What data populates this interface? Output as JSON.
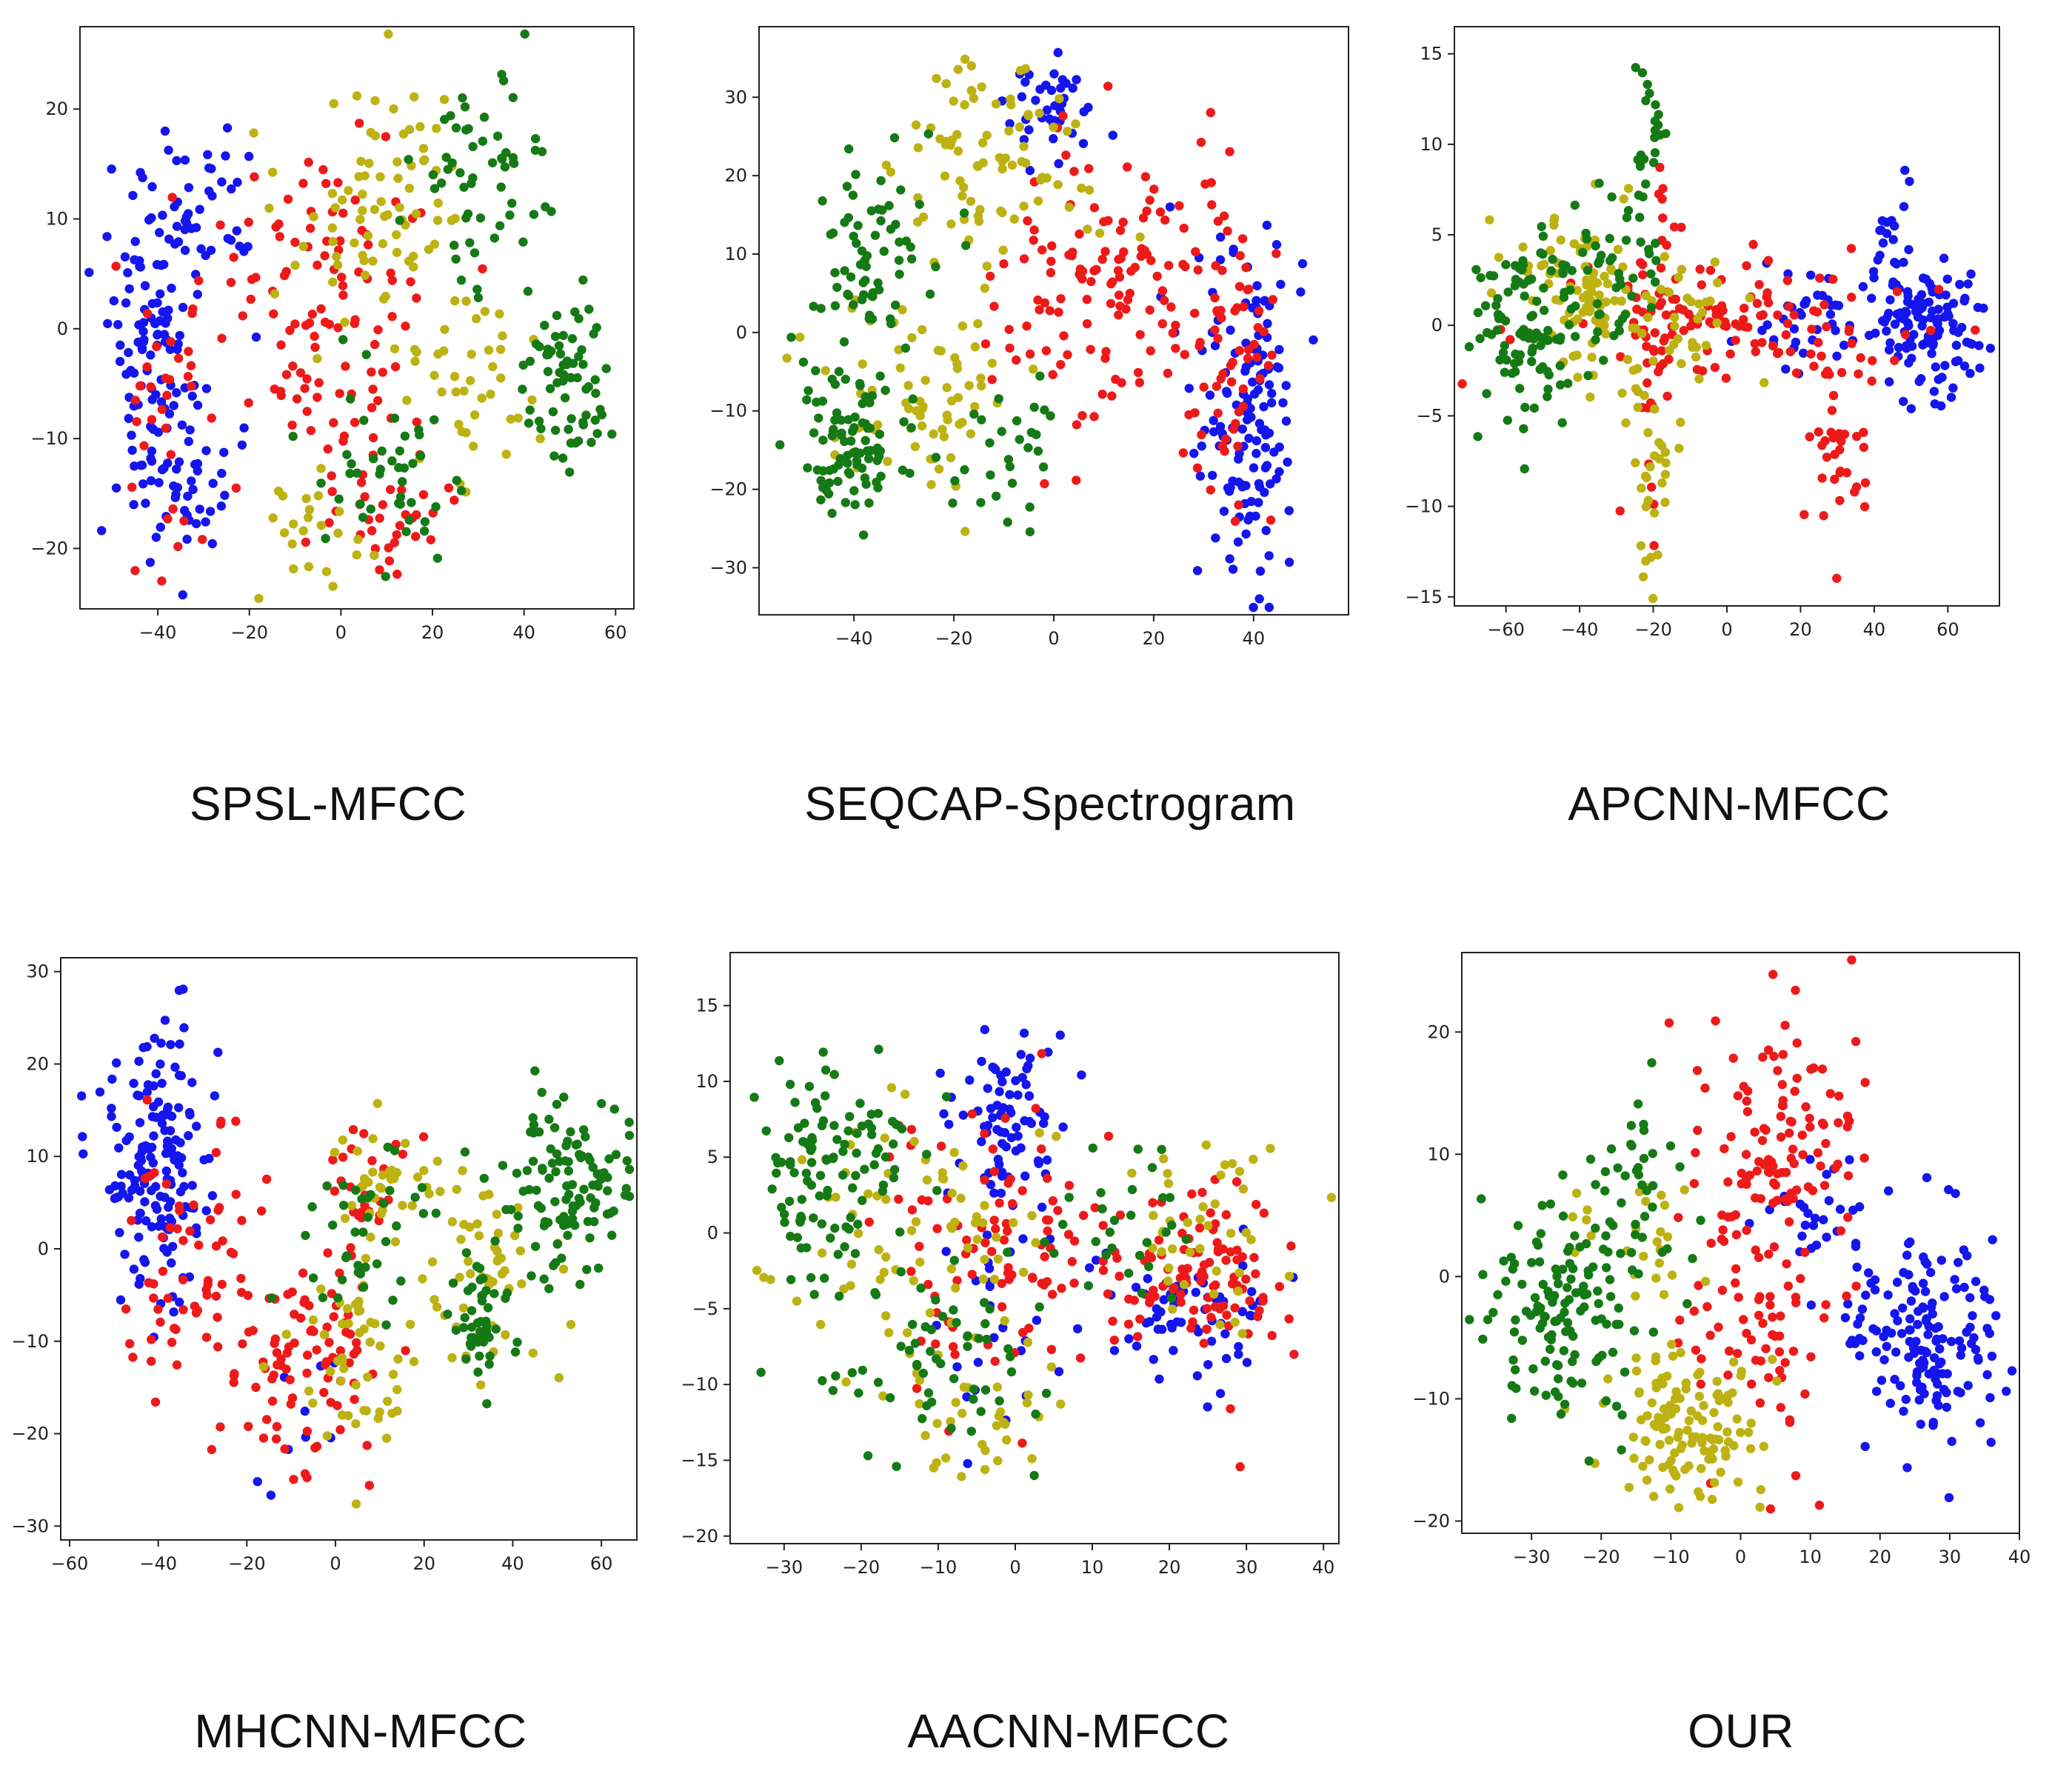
{
  "colors": {
    "blue": "#1515ee",
    "red": "#ee1a1a",
    "olive": "#bdb212",
    "green": "#157a15",
    "frame": "#222222",
    "background": "#ffffff"
  },
  "chart_data": [
    {
      "type": "scatter",
      "title": "SPSL-MFCC",
      "xlim": [
        -57,
        64
      ],
      "ylim": [
        -25.5,
        27.5
      ],
      "xticks": [
        -40,
        -20,
        0,
        20,
        40,
        60
      ],
      "yticks": [
        -20,
        -10,
        0,
        10,
        20
      ],
      "series": [
        {
          "name": "blue",
          "color": "blue",
          "n": 190,
          "clusters": [
            [
              -42,
              0,
              7,
              11,
              0.55
            ],
            [
              -28,
              12,
              8,
              6,
              0.2
            ],
            [
              -34,
              -14,
              8,
              5,
              0.25
            ]
          ]
        },
        {
          "name": "red",
          "color": "red",
          "n": 175,
          "clusters": [
            [
              -5,
              0,
              15,
              11,
              0.6
            ],
            [
              10,
              -17,
              10,
              4,
              0.2
            ],
            [
              -38,
              -6,
              6,
              10,
              0.2
            ]
          ]
        },
        {
          "name": "olive",
          "color": "olive",
          "n": 140,
          "clusters": [
            [
              10,
              12,
              14,
              8,
              0.5
            ],
            [
              30,
              -5,
              10,
              6,
              0.3
            ],
            [
              -5,
              -18,
              10,
              4,
              0.2
            ]
          ]
        },
        {
          "name": "green",
          "color": "green",
          "n": 170,
          "clusters": [
            [
              32,
              14,
              9,
              6,
              0.35
            ],
            [
              50,
              -6,
              6,
              6,
              0.4
            ],
            [
              10,
              -12,
              12,
              6,
              0.25
            ]
          ]
        }
      ]
    },
    {
      "type": "scatter",
      "title": "SEQCAP-Spectrogram",
      "xlim": [
        -59,
        59
      ],
      "ylim": [
        -36,
        39
      ],
      "xticks": [
        -40,
        -20,
        0,
        20,
        40
      ],
      "yticks": [
        -30,
        -20,
        -10,
        0,
        10,
        20,
        30
      ],
      "series": [
        {
          "name": "blue",
          "color": "blue",
          "n": 180,
          "clusters": [
            [
              40,
              -10,
              7,
              13,
              0.85
            ],
            [
              0,
              28,
              6,
              4,
              0.15
            ]
          ]
        },
        {
          "name": "red",
          "color": "red",
          "n": 190,
          "clusters": [
            [
              10,
              5,
              16,
              12,
              0.7
            ],
            [
              35,
              0,
              8,
              14,
              0.3
            ]
          ]
        },
        {
          "name": "olive",
          "color": "olive",
          "n": 150,
          "clusters": [
            [
              -12,
              20,
              12,
              11,
              0.6
            ],
            [
              -25,
              -8,
              12,
              9,
              0.4
            ]
          ]
        },
        {
          "name": "green",
          "color": "green",
          "n": 190,
          "clusters": [
            [
              -40,
              -14,
              7,
              8,
              0.5
            ],
            [
              -35,
              10,
              9,
              8,
              0.35
            ],
            [
              -10,
              -15,
              10,
              6,
              0.15
            ]
          ]
        }
      ]
    },
    {
      "type": "scatter",
      "title": "APCNN-MFCC",
      "xlim": [
        -74,
        74
      ],
      "ylim": [
        -15.5,
        16.5
      ],
      "xticks": [
        -60,
        -40,
        -20,
        0,
        20,
        40,
        60
      ],
      "yticks": [
        -15,
        -10,
        -5,
        0,
        5,
        10,
        15
      ],
      "series": [
        {
          "name": "blue",
          "color": "blue",
          "n": 180,
          "clusters": [
            [
              55,
              0,
              10,
              2.5,
              0.55
            ],
            [
              45,
              3,
              5,
              4,
              0.25
            ],
            [
              20,
              0,
              10,
              2,
              0.2
            ]
          ]
        },
        {
          "name": "red",
          "color": "red",
          "n": 190,
          "clusters": [
            [
              0,
              0,
              30,
              2.5,
              0.6
            ],
            [
              -20,
              -2,
              4,
              7,
              0.2
            ],
            [
              30,
              -6,
              6,
              4,
              0.2
            ]
          ]
        },
        {
          "name": "olive",
          "color": "olive",
          "n": 160,
          "clusters": [
            [
              -40,
              2,
              12,
              3,
              0.5
            ],
            [
              -15,
              0,
              15,
              3,
              0.3
            ],
            [
              -20,
              -8,
              5,
              4,
              0.2
            ]
          ]
        },
        {
          "name": "green",
          "color": "green",
          "n": 170,
          "clusters": [
            [
              -55,
              0,
              10,
              4,
              0.55
            ],
            [
              -35,
              2,
              10,
              3,
              0.3
            ],
            [
              -20,
              10,
              3,
              4,
              0.15
            ]
          ]
        }
      ]
    },
    {
      "type": "scatter",
      "title": "MHCNN-MFCC",
      "xlim": [
        -62,
        68
      ],
      "ylim": [
        -31.5,
        31.5
      ],
      "xticks": [
        -60,
        -40,
        -20,
        0,
        20,
        40,
        60
      ],
      "yticks": [
        -30,
        -20,
        -10,
        0,
        10,
        20,
        30
      ],
      "series": [
        {
          "name": "blue",
          "color": "blue",
          "n": 170,
          "clusters": [
            [
              -40,
              10,
              8,
              10,
              0.9
            ],
            [
              -10,
              -18,
              6,
              6,
              0.1
            ]
          ]
        },
        {
          "name": "red",
          "color": "red",
          "n": 180,
          "clusters": [
            [
              -30,
              0,
              12,
              10,
              0.45
            ],
            [
              -5,
              -12,
              10,
              8,
              0.4
            ],
            [
              5,
              8,
              8,
              4,
              0.15
            ]
          ]
        },
        {
          "name": "olive",
          "color": "olive",
          "n": 140,
          "clusters": [
            [
              5,
              -10,
              10,
              9,
              0.4
            ],
            [
              35,
              0,
              10,
              8,
              0.35
            ],
            [
              10,
              8,
              8,
              4,
              0.25
            ]
          ]
        },
        {
          "name": "green",
          "color": "green",
          "n": 200,
          "clusters": [
            [
              52,
              7,
              10,
              6,
              0.5
            ],
            [
              33,
              -8,
              5,
              5,
              0.25
            ],
            [
              5,
              2,
              10,
              8,
              0.25
            ]
          ]
        }
      ]
    },
    {
      "type": "scatter",
      "title": "AACNN-MFCC",
      "xlim": [
        -37,
        42
      ],
      "ylim": [
        -20.5,
        18.5
      ],
      "xticks": [
        -30,
        -20,
        -10,
        0,
        10,
        20,
        30,
        40
      ],
      "yticks": [
        -20,
        -15,
        -10,
        -5,
        0,
        5,
        10,
        15
      ],
      "series": [
        {
          "name": "blue",
          "color": "blue",
          "n": 170,
          "clusters": [
            [
              0,
              8,
              6,
              5,
              0.45
            ],
            [
              22,
              -5,
              8,
              3,
              0.4
            ],
            [
              -5,
              -8,
              8,
              5,
              0.15
            ]
          ]
        },
        {
          "name": "red",
          "color": "red",
          "n": 200,
          "clusters": [
            [
              0,
              -2,
              13,
              7,
              0.55
            ],
            [
              25,
              -3,
              8,
              4,
              0.45
            ]
          ]
        },
        {
          "name": "olive",
          "color": "olive",
          "n": 150,
          "clusters": [
            [
              -12,
              0,
              12,
              6,
              0.5
            ],
            [
              25,
              0,
              8,
              5,
              0.3
            ],
            [
              -5,
              -13,
              6,
              3,
              0.2
            ]
          ]
        },
        {
          "name": "green",
          "color": "green",
          "n": 200,
          "clusters": [
            [
              -25,
              4,
              7,
              5,
              0.55
            ],
            [
              -10,
              -8,
              10,
              5,
              0.3
            ],
            [
              15,
              0,
              8,
              4,
              0.15
            ]
          ]
        }
      ]
    },
    {
      "type": "scatter",
      "title": "OUR",
      "xlim": [
        -40,
        40
      ],
      "ylim": [
        -21,
        26.5
      ],
      "xticks": [
        -30,
        -20,
        -10,
        0,
        10,
        20,
        30,
        40
      ],
      "yticks": [
        -20,
        -10,
        0,
        10,
        20
      ],
      "series": [
        {
          "name": "blue",
          "color": "blue",
          "n": 190,
          "clusters": [
            [
              26,
              -5,
              7,
              6,
              0.85
            ],
            [
              12,
              5,
              6,
              3,
              0.15
            ]
          ]
        },
        {
          "name": "red",
          "color": "red",
          "n": 180,
          "clusters": [
            [
              5,
              10,
              8,
              8,
              0.7
            ],
            [
              3,
              -5,
              8,
              6,
              0.3
            ]
          ]
        },
        {
          "name": "olive",
          "color": "olive",
          "n": 150,
          "clusters": [
            [
              -8,
              -12,
              7,
              4,
              0.85
            ],
            [
              -15,
              3,
              6,
              4,
              0.15
            ]
          ]
        },
        {
          "name": "green",
          "color": "green",
          "n": 170,
          "clusters": [
            [
              -25,
              -2,
              7,
              6,
              0.75
            ],
            [
              -15,
              8,
              6,
              4,
              0.25
            ]
          ]
        }
      ]
    }
  ]
}
